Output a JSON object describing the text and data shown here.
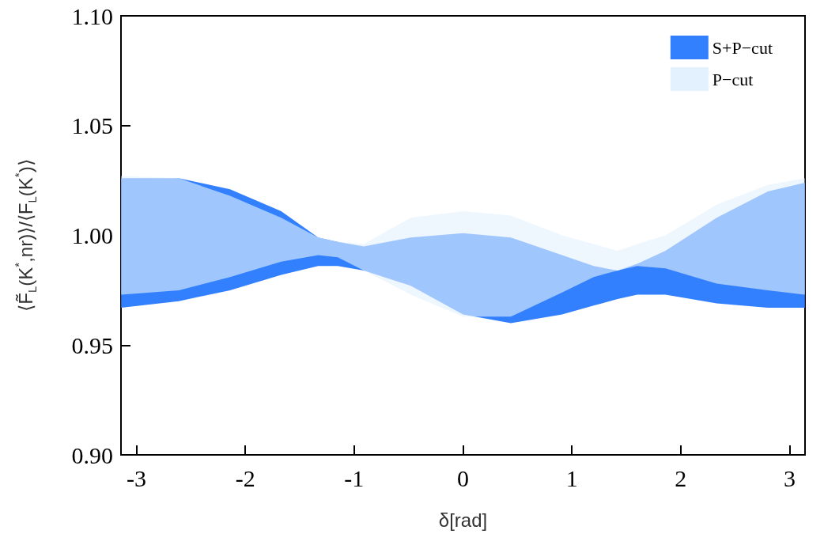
{
  "chart_data": {
    "type": "area",
    "xlabel": "δ[rad]",
    "ylabel": "⟨F̃$_{L}$(K$^{*}$,nr)⟩/⟨F$_{L}$(K$^{*}$)⟩",
    "x": [
      -3.14,
      -2.61,
      -2.14,
      -1.67,
      -1.33,
      -1.15,
      -0.91,
      -0.48,
      0,
      0.44,
      0.91,
      1.2,
      1.42,
      1.6,
      1.86,
      2.33,
      2.8,
      3.14
    ],
    "series": [
      {
        "name": "S+P−cut",
        "color": "#3380ff",
        "values": [
          null,
          null,
          null,
          null,
          null,
          null,
          null,
          null,
          null,
          null,
          null,
          null,
          null,
          null,
          null,
          null,
          null,
          null
        ],
        "upper": [
          1.026,
          1.026,
          1.021,
          1.011,
          0.999,
          0.997,
          0.995,
          0.999,
          1.001,
          0.999,
          0.991,
          0.986,
          0.984,
          0.987,
          0.993,
          1.008,
          1.02,
          1.024
        ],
        "lower": [
          0.967,
          0.97,
          0.975,
          0.982,
          0.986,
          0.986,
          0.984,
          0.977,
          0.964,
          0.96,
          0.964,
          0.968,
          0.971,
          0.973,
          0.973,
          0.969,
          0.967,
          0.967
        ]
      },
      {
        "name": "P−cut",
        "color": "#e3f0fd",
        "values": [
          null,
          null,
          null,
          null,
          null,
          null,
          null,
          null,
          null,
          null,
          null,
          null,
          null,
          null,
          null,
          null,
          null,
          null
        ],
        "upper": [
          1.027,
          1.026,
          1.018,
          1.008,
          0.999,
          0.997,
          0.996,
          1.008,
          1.011,
          1.009,
          1.0,
          0.996,
          0.993,
          0.996,
          1.0,
          1.014,
          1.023,
          1.026
        ],
        "lower": [
          0.973,
          0.975,
          0.981,
          0.988,
          0.991,
          0.99,
          0.984,
          0.973,
          0.963,
          0.963,
          0.974,
          0.981,
          0.984,
          0.986,
          0.985,
          0.978,
          0.975,
          0.973
        ]
      }
    ],
    "xlim": [
      -3.1416,
      3.1416
    ],
    "xticks": [
      -3,
      -2,
      -1,
      0,
      1,
      2,
      3
    ],
    "ylim": [
      0.9,
      1.1
    ],
    "yticks": [
      {
        "value": 0.9,
        "label": "0.90"
      },
      {
        "value": 0.95,
        "label": "0.95"
      },
      {
        "value": 1.0,
        "label": "1.00"
      },
      {
        "value": 1.05,
        "label": "1.05"
      },
      {
        "value": 1.1,
        "label": "1.10"
      }
    ],
    "grid": false,
    "legend": "top right"
  }
}
